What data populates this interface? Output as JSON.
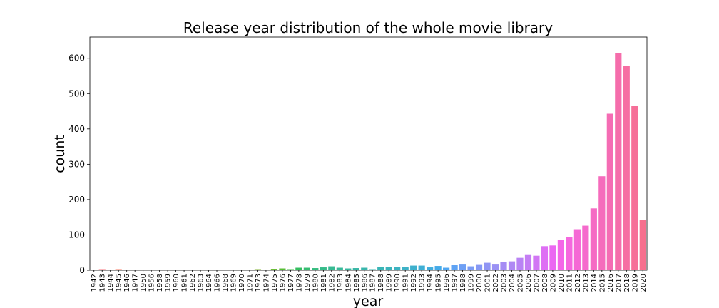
{
  "chart_data": {
    "type": "bar",
    "title": "Release year distribution of the whole movie library",
    "xlabel": "year",
    "ylabel": "count",
    "ylim": [
      0,
      660
    ],
    "yticks": [
      0,
      100,
      200,
      300,
      400,
      500,
      600
    ],
    "grid": false,
    "legend": "none",
    "categories": [
      "1942",
      "1943",
      "1944",
      "1945",
      "1946",
      "1947",
      "1950",
      "1956",
      "1958",
      "1959",
      "1960",
      "1961",
      "1962",
      "1963",
      "1964",
      "1966",
      "1968",
      "1969",
      "1970",
      "1971",
      "1973",
      "1974",
      "1975",
      "1976",
      "1977",
      "1978",
      "1979",
      "1980",
      "1981",
      "1982",
      "1983",
      "1984",
      "1985",
      "1986",
      "1987",
      "1988",
      "1989",
      "1990",
      "1991",
      "1992",
      "1993",
      "1994",
      "1995",
      "1996",
      "1997",
      "1998",
      "1999",
      "2000",
      "2001",
      "2002",
      "2003",
      "2004",
      "2005",
      "2006",
      "2007",
      "2008",
      "2009",
      "2010",
      "2011",
      "2012",
      "2013",
      "2014",
      "2015",
      "2016",
      "2017",
      "2018",
      "2019",
      "2020"
    ],
    "values": [
      1,
      3,
      1,
      3,
      1,
      1,
      1,
      1,
      1,
      1,
      1,
      1,
      1,
      1,
      1,
      1,
      1,
      1,
      1,
      1,
      3,
      2,
      4,
      5,
      3,
      7,
      7,
      6,
      8,
      11,
      7,
      5,
      6,
      7,
      3,
      9,
      9,
      10,
      9,
      13,
      13,
      8,
      12,
      7,
      15,
      18,
      11,
      17,
      21,
      18,
      24,
      25,
      35,
      45,
      41,
      68,
      70,
      86,
      93,
      116,
      126,
      175,
      266,
      443,
      615,
      578,
      466,
      142
    ],
    "colors": [
      "#f77189",
      "#f7737c",
      "#f7766e",
      "#f77861",
      "#f77b52",
      "#f77f43",
      "#f38435",
      "#e98b34",
      "#e09034",
      "#d89534",
      "#d19834",
      "#ca9c34",
      "#c39f34",
      "#bca234",
      "#b6a534",
      "#afa835",
      "#a8aa35",
      "#a0ad35",
      "#98af35",
      "#8eb235",
      "#84b535",
      "#78b835",
      "#69bb35",
      "#57bd35",
      "#40be45",
      "#34be60",
      "#35bd72",
      "#36bc7f",
      "#36bb89",
      "#37ba92",
      "#38b999",
      "#38b8a0",
      "#39b7a6",
      "#39b6ac",
      "#3ab6b1",
      "#3ab5b6",
      "#3bb4bb",
      "#3cb3c1",
      "#3db2c7",
      "#3eb0cd",
      "#3fafd5",
      "#41addd",
      "#44aae8",
      "#50a7f2",
      "#5fa3f4",
      "#6e9ff4",
      "#7b9cf4",
      "#8698f4",
      "#9095f4",
      "#9a91f4",
      "#a58cf4",
      "#af88f4",
      "#b983f4",
      "#c47df4",
      "#d176f4",
      "#de6ff4",
      "#eb68f2",
      "#f467e8",
      "#f568de",
      "#f569d5",
      "#f56acc",
      "#f56bc4",
      "#f56bbc",
      "#f56cb4",
      "#f56dab",
      "#f66ea2",
      "#f66f98",
      "#f6708e"
    ]
  }
}
